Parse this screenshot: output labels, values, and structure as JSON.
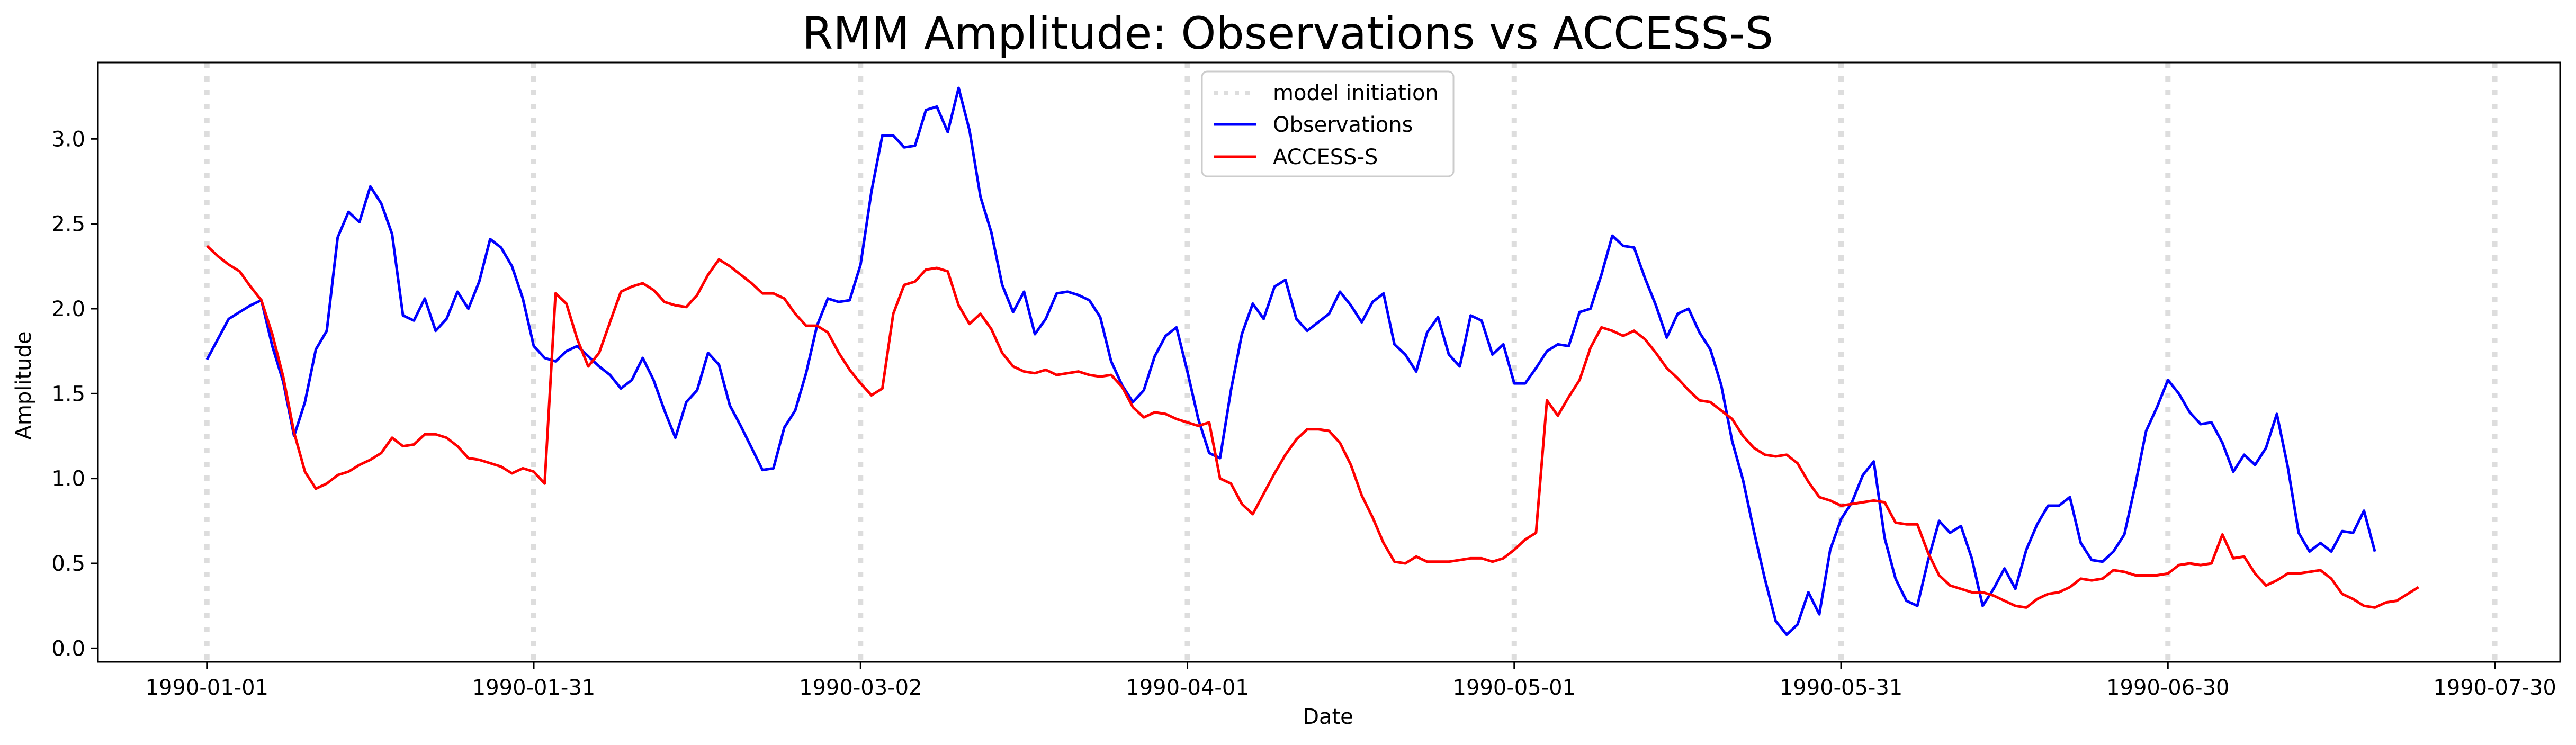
{
  "chart_data": {
    "type": "line",
    "title": "RMM Amplitude: Observations vs ACCESS-S",
    "xlabel": "Date",
    "ylabel": "Amplitude",
    "x_start": "1990-01-01",
    "xlim": [
      "1989-12-22",
      "1990-08-05"
    ],
    "ylim": [
      -0.08,
      3.45
    ],
    "x_ticks": [
      "1990-01-01",
      "1990-01-31",
      "1990-03-02",
      "1990-04-01",
      "1990-05-01",
      "1990-05-31",
      "1990-06-30",
      "1990-07-30"
    ],
    "y_ticks": [
      0.0,
      0.5,
      1.0,
      1.5,
      2.0,
      2.5,
      3.0
    ],
    "y_tick_labels": [
      "0.0",
      "0.5",
      "1.0",
      "1.5",
      "2.0",
      "2.5",
      "3.0"
    ],
    "legend_position": "upper center",
    "model_initiation": {
      "name": "model initiation",
      "color": "#dddddd",
      "dates": [
        "1990-01-01",
        "1990-01-31",
        "1990-03-02",
        "1990-04-01",
        "1990-05-01",
        "1990-05-31",
        "1990-06-30",
        "1990-07-30"
      ]
    },
    "series": [
      {
        "name": "Observations",
        "color": "#0000ff",
        "values": [
          1.7,
          1.82,
          1.94,
          1.98,
          2.02,
          2.05,
          1.78,
          1.57,
          1.25,
          1.45,
          1.76,
          1.87,
          2.42,
          2.57,
          2.51,
          2.72,
          2.62,
          2.44,
          1.96,
          1.93,
          2.06,
          1.87,
          1.94,
          2.1,
          2.0,
          2.16,
          2.41,
          2.36,
          2.25,
          2.06,
          1.78,
          1.71,
          1.69,
          1.75,
          1.78,
          1.72,
          1.66,
          1.61,
          1.53,
          1.58,
          1.71,
          1.58,
          1.4,
          1.24,
          1.45,
          1.52,
          1.74,
          1.67,
          1.43,
          1.31,
          1.18,
          1.05,
          1.06,
          1.3,
          1.4,
          1.62,
          1.9,
          2.06,
          2.04,
          2.05,
          2.26,
          2.69,
          3.02,
          3.02,
          2.95,
          2.96,
          3.17,
          3.19,
          3.04,
          3.3,
          3.05,
          2.66,
          2.45,
          2.14,
          1.98,
          2.1,
          1.85,
          1.94,
          2.09,
          2.1,
          2.08,
          2.05,
          1.95,
          1.69,
          1.55,
          1.45,
          1.52,
          1.72,
          1.84,
          1.89,
          1.63,
          1.35,
          1.15,
          1.12,
          1.52,
          1.85,
          2.03,
          1.94,
          2.13,
          2.17,
          1.94,
          1.87,
          1.92,
          1.97,
          2.1,
          2.02,
          1.92,
          2.04,
          2.09,
          1.79,
          1.73,
          1.63,
          1.86,
          1.95,
          1.73,
          1.66,
          1.96,
          1.93,
          1.73,
          1.79,
          1.56,
          1.56,
          1.65,
          1.75,
          1.79,
          1.78,
          1.98,
          2.0,
          2.2,
          2.43,
          2.37,
          2.36,
          2.18,
          2.02,
          1.83,
          1.97,
          2.0,
          1.86,
          1.76,
          1.55,
          1.22,
          0.99,
          0.69,
          0.41,
          0.16,
          0.08,
          0.14,
          0.33,
          0.2,
          0.58,
          0.76,
          0.86,
          1.02,
          1.1,
          0.65,
          0.41,
          0.28,
          0.25,
          0.52,
          0.75,
          0.68,
          0.72,
          0.53,
          0.25,
          0.35,
          0.47,
          0.35,
          0.58,
          0.73,
          0.84,
          0.84,
          0.89,
          0.62,
          0.52,
          0.51,
          0.57,
          0.67,
          0.96,
          1.28,
          1.42,
          1.58,
          1.5,
          1.39,
          1.32,
          1.33,
          1.21,
          1.04,
          1.14,
          1.08,
          1.18,
          1.38,
          1.07,
          0.68,
          0.57,
          0.62,
          0.57,
          0.69,
          0.68,
          0.81,
          0.57
        ]
      },
      {
        "name": "ACCESS-S",
        "color": "#ff0000",
        "values": [
          2.37,
          2.31,
          2.26,
          2.22,
          2.13,
          2.05,
          1.85,
          1.6,
          1.27,
          1.04,
          0.94,
          0.97,
          1.02,
          1.04,
          1.08,
          1.11,
          1.15,
          1.24,
          1.19,
          1.2,
          1.26,
          1.26,
          1.24,
          1.19,
          1.12,
          1.11,
          1.09,
          1.07,
          1.03,
          1.06,
          1.04,
          0.97,
          2.09,
          2.03,
          1.82,
          1.66,
          1.74,
          1.92,
          2.1,
          2.13,
          2.15,
          2.11,
          2.04,
          2.02,
          2.01,
          2.08,
          2.2,
          2.29,
          2.25,
          2.2,
          2.15,
          2.09,
          2.09,
          2.06,
          1.97,
          1.9,
          1.9,
          1.86,
          1.74,
          1.64,
          1.56,
          1.49,
          1.53,
          1.97,
          2.14,
          2.16,
          2.23,
          2.24,
          2.22,
          2.02,
          1.91,
          1.97,
          1.88,
          1.74,
          1.66,
          1.63,
          1.62,
          1.64,
          1.61,
          1.62,
          1.63,
          1.61,
          1.6,
          1.61,
          1.54,
          1.42,
          1.36,
          1.39,
          1.38,
          1.35,
          1.33,
          1.31,
          1.33,
          1.0,
          0.97,
          0.85,
          0.79,
          0.91,
          1.03,
          1.14,
          1.23,
          1.29,
          1.29,
          1.28,
          1.21,
          1.08,
          0.9,
          0.77,
          0.62,
          0.51,
          0.5,
          0.54,
          0.51,
          0.51,
          0.51,
          0.52,
          0.53,
          0.53,
          0.51,
          0.53,
          0.58,
          0.64,
          0.68,
          1.46,
          1.37,
          1.48,
          1.58,
          1.77,
          1.89,
          1.87,
          1.84,
          1.87,
          1.82,
          1.74,
          1.65,
          1.59,
          1.52,
          1.46,
          1.45,
          1.4,
          1.35,
          1.25,
          1.18,
          1.14,
          1.13,
          1.14,
          1.09,
          0.98,
          0.89,
          0.87,
          0.84,
          0.85,
          0.86,
          0.87,
          0.86,
          0.74,
          0.73,
          0.73,
          0.56,
          0.43,
          0.37,
          0.35,
          0.33,
          0.33,
          0.31,
          0.28,
          0.25,
          0.24,
          0.29,
          0.32,
          0.33,
          0.36,
          0.41,
          0.4,
          0.41,
          0.46,
          0.45,
          0.43,
          0.43,
          0.43,
          0.44,
          0.49,
          0.5,
          0.49,
          0.5,
          0.67,
          0.53,
          0.54,
          0.44,
          0.37,
          0.4,
          0.44,
          0.44,
          0.45,
          0.46,
          0.41,
          0.32,
          0.29,
          0.25,
          0.24,
          0.27,
          0.28,
          0.32,
          0.36
        ]
      }
    ]
  }
}
